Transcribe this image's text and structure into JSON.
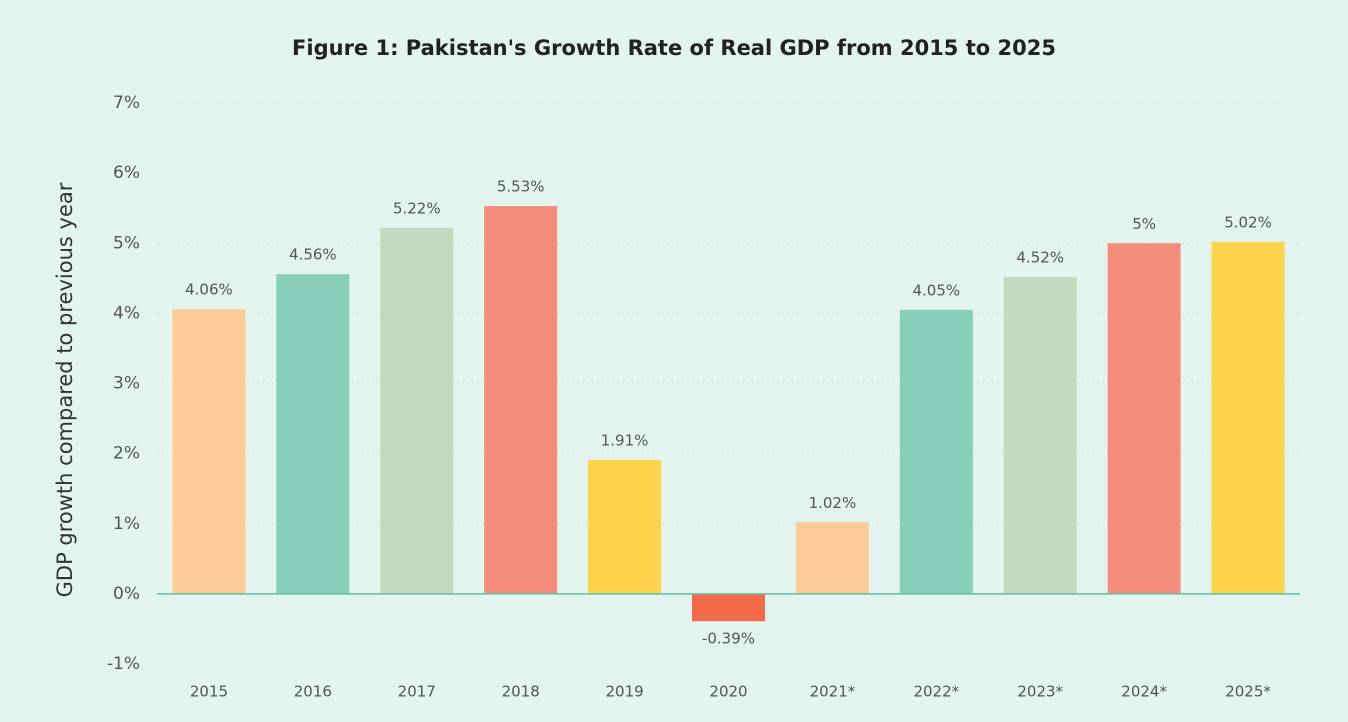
{
  "chart_data": {
    "type": "bar",
    "title": "Figure 1: Pakistan's Growth Rate of Real GDP from 2015 to 2025",
    "y_axis_label": "GDP growth compared to previous year",
    "categories": [
      "2015",
      "2016",
      "2017",
      "2018",
      "2019",
      "2020",
      "2021*",
      "2022*",
      "2023*",
      "2024*",
      "2025*"
    ],
    "values": [
      4.06,
      4.56,
      5.22,
      5.53,
      1.91,
      -0.39,
      1.02,
      4.05,
      4.52,
      5,
      5.02
    ],
    "value_labels": [
      "4.06%",
      "4.56%",
      "5.22%",
      "5.53%",
      "1.91%",
      "-0.39%",
      "1.02%",
      "4.05%",
      "4.52%",
      "5%",
      "5.02%"
    ],
    "colors": [
      "#fccb98",
      "#88cfbb",
      "#c4d9bf",
      "#f58d7d",
      "#fdd44b",
      "#f26b4a",
      "#fccb98",
      "#88cfbb",
      "#c4d9bf",
      "#f58d7d",
      "#fdd44b"
    ],
    "ylim": [
      -1,
      7
    ],
    "yticks": [
      {
        "value": -1,
        "label": "-1%"
      },
      {
        "value": 0,
        "label": "0%"
      },
      {
        "value": 1,
        "label": "1%"
      },
      {
        "value": 2,
        "label": "2%"
      },
      {
        "value": 3,
        "label": "3%"
      },
      {
        "value": 4,
        "label": "4%"
      },
      {
        "value": 5,
        "label": "5%"
      },
      {
        "value": 6,
        "label": "6%"
      },
      {
        "value": 7,
        "label": "7%"
      }
    ],
    "grid": true
  }
}
